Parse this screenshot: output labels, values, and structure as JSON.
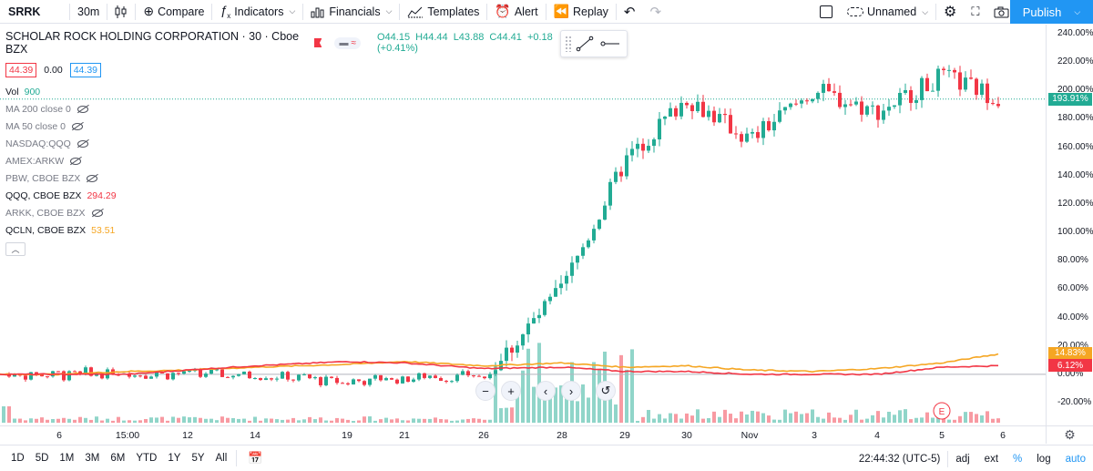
{
  "toolbar": {
    "symbol": "SRRK",
    "interval": "30m",
    "compare_label": "Compare",
    "indicators_label": "Indicators",
    "financials_label": "Financials",
    "templates_label": "Templates",
    "alert_label": "Alert",
    "replay_label": "Replay",
    "layout_name": "Unnamed",
    "publish_label": "Publish"
  },
  "legend": {
    "title": "SCHOLAR ROCK HOLDING CORPORATION · 30 · Cboe BZX",
    "ohlc": {
      "o": "O44.15",
      "h": "H44.44",
      "l": "L43.88",
      "c": "C44.41",
      "chg": "+0.18 (+0.41%)"
    },
    "sell": "44.39",
    "spread": "0.00",
    "buy": "44.39",
    "vol_label": "Vol",
    "vol_value": "900",
    "indicators": [
      {
        "label": "MA 200 close 0",
        "hidden": true,
        "value": ""
      },
      {
        "label": "MA 50 close 0",
        "hidden": true,
        "value": ""
      },
      {
        "label": "NASDAQ:QQQ",
        "hidden": true,
        "value": ""
      },
      {
        "label": "AMEX:ARKW",
        "hidden": true,
        "value": ""
      },
      {
        "label": "PBW, CBOE BZX",
        "hidden": true,
        "value": ""
      },
      {
        "label": "QQQ, CBOE BZX",
        "hidden": false,
        "value": "294.29",
        "color": "#f23645"
      },
      {
        "label": "ARKK, CBOE BZX",
        "hidden": true,
        "value": ""
      },
      {
        "label": "QCLN, CBOE BZX",
        "hidden": false,
        "value": "53.51",
        "color": "#f5a623"
      }
    ]
  },
  "price_scale": {
    "ticks": [
      "240.00%",
      "220.00%",
      "200.00%",
      "180.00%",
      "160.00%",
      "140.00%",
      "120.00%",
      "100.00%",
      "80.00%",
      "60.00%",
      "40.00%",
      "20.00%",
      "0.00%",
      "-20.00%"
    ],
    "badges": [
      {
        "label": "193.91%",
        "value": 193.91,
        "color": "#22ab94"
      },
      {
        "label": "14.83%",
        "value": 14.83,
        "color": "#f5a623"
      },
      {
        "label": "6.12%",
        "value": 6.12,
        "color": "#f23645"
      }
    ]
  },
  "time_axis": {
    "labels": [
      "6",
      "15:00",
      "12",
      "14",
      "19",
      "21",
      "26",
      "28",
      "29",
      "30",
      "Nov",
      "3",
      "4",
      "5",
      "6"
    ]
  },
  "earnings_marker": "E",
  "bottom": {
    "ranges": [
      "1D",
      "5D",
      "1M",
      "3M",
      "6M",
      "YTD",
      "1Y",
      "5Y",
      "All"
    ],
    "clock": "22:44:32 (UTC-5)",
    "adj": "adj",
    "ext": "ext",
    "pct": "%",
    "log": "log",
    "auto": "auto"
  },
  "colors": {
    "up": "#22ab94",
    "down": "#f23645",
    "qqq": "#f23645",
    "qcln": "#f5a623",
    "accent": "#2196f3"
  },
  "chart_data": {
    "type": "line",
    "y_axis": {
      "unit": "%",
      "range": [
        -30,
        245
      ]
    },
    "x": [
      "6",
      "15:00",
      "12",
      "14",
      "19",
      "21",
      "26",
      "28",
      "29",
      "30",
      "Nov",
      "3",
      "4",
      "5",
      "6"
    ],
    "series": [
      {
        "name": "SRRK",
        "values": [
          0,
          2,
          1,
          -2,
          -10,
          -5,
          -3,
          60,
          150,
          195,
          165,
          200,
          185,
          210,
          193.91
        ]
      },
      {
        "name": "QQQ, CBOE BZX",
        "values": [
          0,
          0,
          3,
          6,
          9,
          8,
          4,
          5,
          2,
          2,
          0,
          0,
          0,
          5,
          6.12
        ]
      },
      {
        "name": "QCLN, CBOE BZX",
        "values": [
          0,
          2,
          3,
          5,
          7,
          9,
          6,
          8,
          5,
          6,
          3,
          2,
          4,
          8,
          14.83
        ]
      }
    ]
  }
}
